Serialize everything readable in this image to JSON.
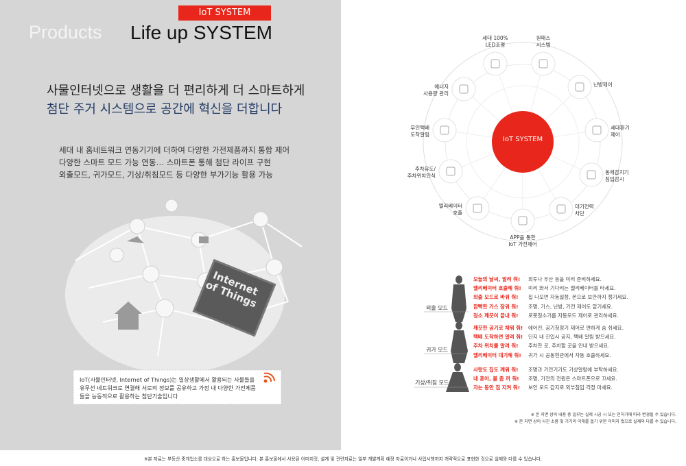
{
  "header": {
    "badge": "IoT SYSTEM",
    "section": "Products",
    "title": "Life up SYSTEM"
  },
  "headline": [
    "사물인터넷으로 생활을 더 편리하게 더 스마트하게",
    "첨단 주거 시스템으로 공간에 혁신을 더합니다"
  ],
  "body": [
    "세대 내 홈네트워크 연동기기에 더하여 다양한 가전제품까지 통합 제어",
    "다양한 스마트 모드 가능 연동… 스마트폰 통해 첨단 라이프 구현",
    "외출모드, 귀가모드, 기상/취침모드 등 다양한 부가기능 활용 가능"
  ],
  "illustration": {
    "sign": "Internet\nof Things"
  },
  "note": [
    "IoT(사물인터넷, Internet of Things)는 일상생활에서 활용되는 사물들을",
    "유무선 네트워크로 연결해 서로의 정보를 공유하고 가정 내 다양한 가전제품",
    "들을 능동적으로 활용하는 첨단기술입니다"
  ],
  "diagram": {
    "center": "IoT SYSTEM",
    "nodes": [
      {
        "label": "세대 100%\nLED조명"
      },
      {
        "label": "원패스\n시스템"
      },
      {
        "label": "난방제어"
      },
      {
        "label": "세대환기\n제어"
      },
      {
        "label": "동체감지기\n침입감시"
      },
      {
        "label": "대기전력\n차단"
      },
      {
        "label": "APP을 통한\nIoT 가전제어"
      },
      {
        "label": "엘리베이터\n호출"
      },
      {
        "label": "주차유도/\n주차위치인식"
      },
      {
        "label": "무인택배\n도착알림"
      },
      {
        "label": "에너지\n사용량 관리"
      }
    ]
  },
  "modes": [
    {
      "name": "외출 모드",
      "rows": [
        {
          "request": "오늘의 날씨, 알려 줘!",
          "detail": "외투나 우산 등을 미리 준비하세요."
        },
        {
          "request": "엘리베이터 호출해 줘!",
          "detail": "미리 와서 기다리는 엘리베이터를 타세요."
        },
        {
          "request": "외출 모드로 바꿔 줘!",
          "detail": "집 나오면 자동설정, 폰으로 보안까지 챙기세요."
        },
        {
          "request": "깜빡한 가스 잠궈 줘!",
          "detail": "조명, 가스, 난방, 가전 제어도 맡기세요."
        },
        {
          "request": "청소 깨끗이 끝내 줘!",
          "detail": "로봇청소기를 자동모드 제어로 관리하세요."
        }
      ]
    },
    {
      "name": "귀가 모드",
      "rows": [
        {
          "request": "깨끗한 공기로 채워 줘!",
          "detail": "에어컨, 공기청정기 제어로 편하게 숨 쉬세요."
        },
        {
          "request": "택배 도착하면 알려 줘!",
          "detail": "단지 내 진입시 공지, 택배 알림 받으세요."
        },
        {
          "request": "주차 위치를 알려 줘!",
          "detail": "주차한 곳, 주차할 곳을 안내 받으세요."
        },
        {
          "request": "엘리베이터 대기해 줘!",
          "detail": "귀가 시 공동현관에서 자동 호출하세요."
        }
      ]
    },
    {
      "name": "기상/취침 모드",
      "rows": [
        {
          "request": "사랑도 집도 깨워 줘!",
          "detail": "조명과 가전기기도 기상알람에 부탁하세요."
        },
        {
          "request": "네 혼아, 불 좀 꺼 줘!",
          "detail": "조명, 가전의 전원은 스마트폰으로 끄세요."
        },
        {
          "request": "자는 동안 집 지켜 줘!",
          "detail": "보안 모드 감지로 외부침입 걱정 마세요."
        }
      ]
    }
  ],
  "disclaimers": [
    "※ 본 지면 상의 내용 중 일부는 실제 시공 시 또는 인허가에 따라 변경될 수 있습니다.",
    "※ 본 지면 상의 사진 소품 및 기기의 이해를 돕기 위한 이미지 컷으로 실제와 다를 수 있습니다."
  ],
  "footer": "※본 자료는 부동산 중개업소를 대상으로 하는 홍보물입니다. 본 홍보물에서 사용된 이미지컷, 설계 및 관련자료는 일부 개발계획 예정 자료이거나 사업시행까지 개략적으로 표현한 것으로 실제와 다를 수 있습니다."
}
